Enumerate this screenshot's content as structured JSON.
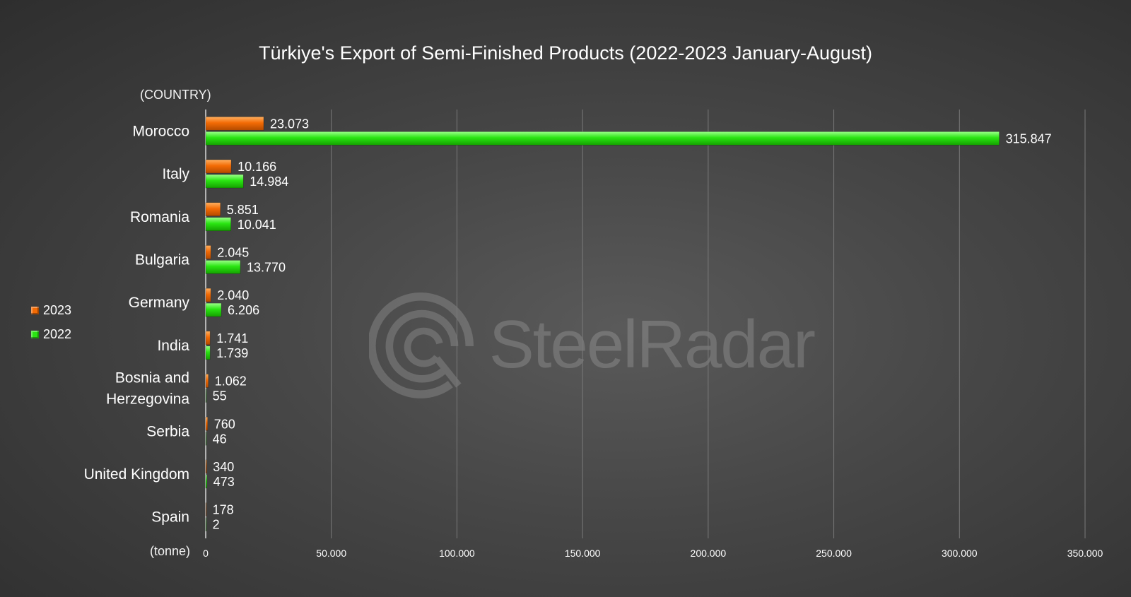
{
  "chart_data": {
    "type": "bar",
    "orientation": "horizontal",
    "title": "Türkiye's Export of Semi-Finished Products (2022-2023 January-August)",
    "ylabel": "(COUNTRY)",
    "xlabel": "(tonne)",
    "categories": [
      "Morocco",
      "Italy",
      "Romania",
      "Bulgaria",
      "Germany",
      "India",
      "Bosnia and Herzegovina",
      "Serbia",
      "United Kingdom",
      "Spain"
    ],
    "series": [
      {
        "name": "2023",
        "color": "#f36b05",
        "values": [
          23073,
          10166,
          5851,
          2045,
          2040,
          1741,
          1062,
          760,
          340,
          178
        ],
        "labels": [
          "23.073",
          "10.166",
          "5.851",
          "2.045",
          "2.040",
          "1.741",
          "1.062",
          "760",
          "340",
          "178"
        ]
      },
      {
        "name": "2022",
        "color": "#2ae512",
        "values": [
          315847,
          14984,
          10041,
          13770,
          6206,
          1739,
          55,
          46,
          473,
          2
        ],
        "labels": [
          "315.847",
          "14.984",
          "10.041",
          "13.770",
          "6.206",
          "1.739",
          "55",
          "46",
          "473",
          "2"
        ]
      }
    ],
    "xlim": [
      0,
      350000
    ],
    "ticks": [
      0,
      50000,
      100000,
      150000,
      200000,
      250000,
      300000,
      350000
    ],
    "tick_labels": [
      "0",
      "50.000",
      "100.000",
      "150.000",
      "200.000",
      "250.000",
      "300.000",
      "350.000"
    ],
    "grid": true,
    "legend_position": "left"
  },
  "watermark": {
    "text": "SteelRadar"
  }
}
